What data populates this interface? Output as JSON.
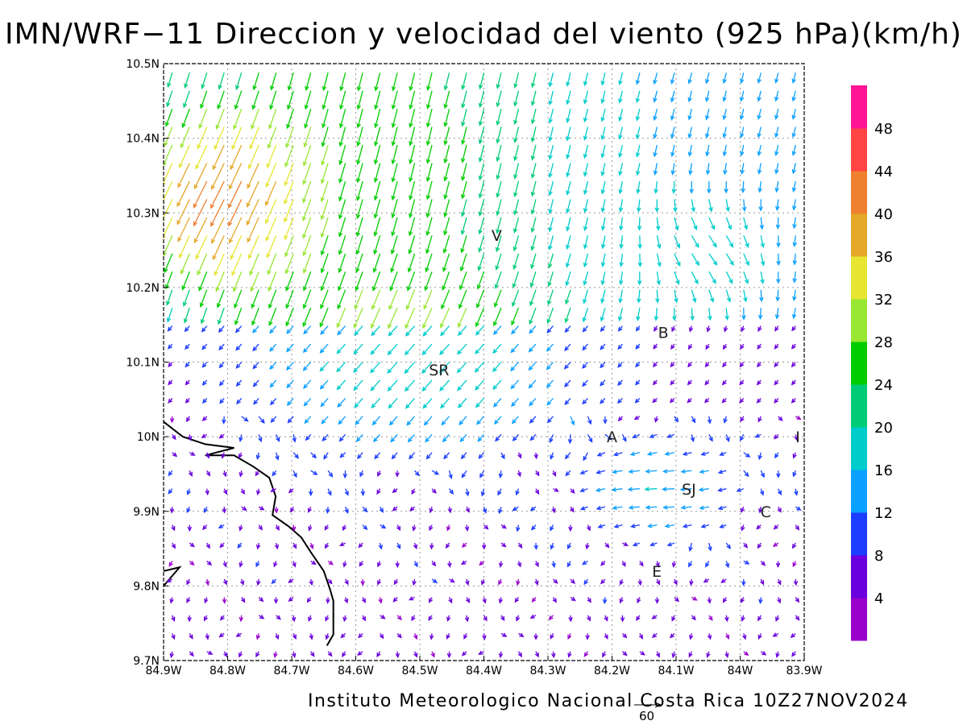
{
  "title": "IMN/WRF−11 Direccion y velocidad del viento (925 hPa)(km/h)",
  "credit": "Instituto Meteorologico Nacional Costa Rica  10Z27NOV2024",
  "reference_vector": {
    "label": "60",
    "speed_kmh": 60
  },
  "map": {
    "lon_range": [
      -84.9,
      -83.9
    ],
    "lat_range": [
      9.7,
      10.5
    ],
    "x_ticks": [
      "84.9W",
      "84.8W",
      "84.7W",
      "84.6W",
      "84.5W",
      "84.4W",
      "84.3W",
      "84.2W",
      "84.1W",
      "84W",
      "83.9W"
    ],
    "y_ticks": [
      "10.5N",
      "10.4N",
      "10.3N",
      "10.2N",
      "10.1N",
      "10N",
      "9.9N",
      "9.8N",
      "9.7N"
    ],
    "grid": "dotted",
    "cities": [
      {
        "label": "V",
        "lon": -84.38,
        "lat": 10.27
      },
      {
        "label": "SR",
        "lon": -84.47,
        "lat": 10.09
      },
      {
        "label": "B",
        "lon": -84.12,
        "lat": 10.14
      },
      {
        "label": "A",
        "lon": -84.2,
        "lat": 10.0
      },
      {
        "label": "I",
        "lon": -83.91,
        "lat": 10.0
      },
      {
        "label": "SJ",
        "lon": -84.08,
        "lat": 9.93
      },
      {
        "label": "C",
        "lon": -83.96,
        "lat": 9.9
      },
      {
        "label": "E",
        "lon": -84.13,
        "lat": 9.82
      }
    ],
    "coastline_color": "#000000"
  },
  "colorbar": {
    "labels": [
      "4",
      "8",
      "12",
      "16",
      "20",
      "24",
      "28",
      "32",
      "36",
      "40",
      "44",
      "48"
    ],
    "colors": [
      "#9900cc",
      "#6a00dd",
      "#1c3cff",
      "#0aa0ff",
      "#00cccc",
      "#00cc77",
      "#00cc00",
      "#99e633",
      "#e6e633",
      "#e6a829",
      "#ee8030",
      "#ff4444",
      "#ff1493"
    ]
  }
}
